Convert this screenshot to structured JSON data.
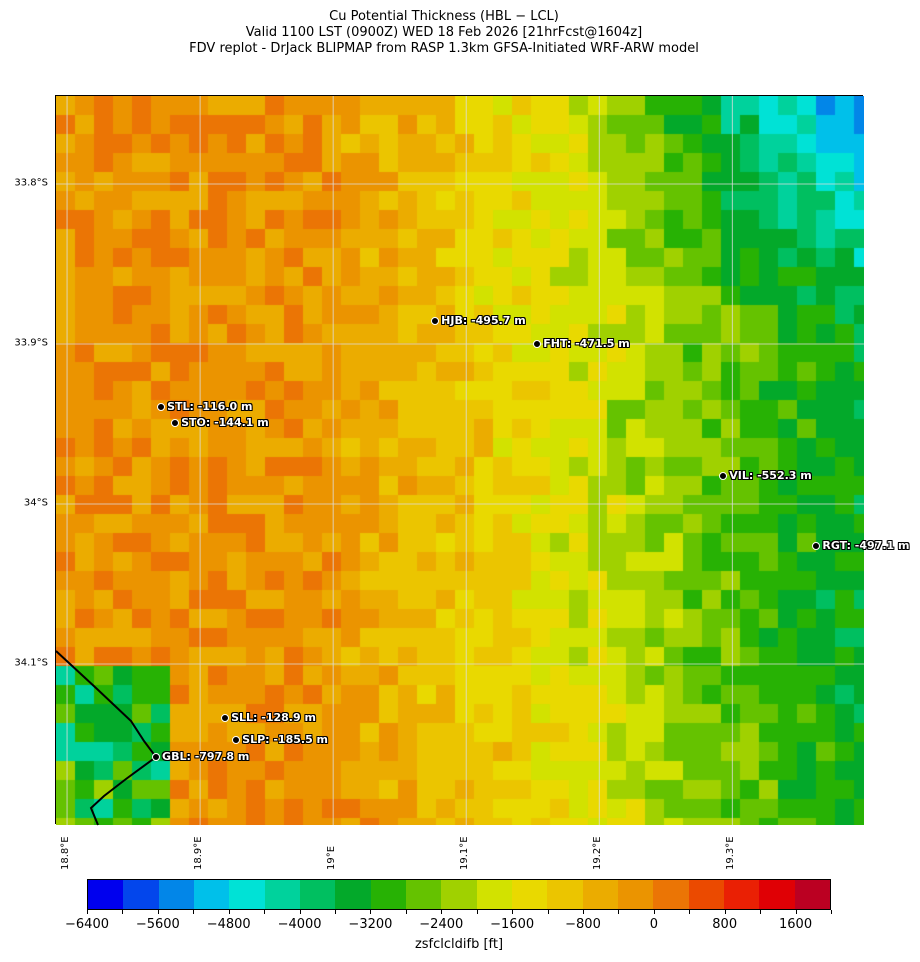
{
  "title": {
    "line1": "Cu Potential Thickness (HBL − LCL)",
    "line2": "Valid 1100 LST (0900Z) WED 18 Feb 2026 [21hrFcst@1604z]",
    "line3": "FDV replot - DrJack BLIPMAP from RASP 1.3km GFSA-Initiated WRF-ARW model"
  },
  "map": {
    "lon_range": [
      18.7917,
      19.399
    ],
    "lat_range": [
      33.745,
      34.2006
    ],
    "lat_ticks": [
      {
        "value": 33.8,
        "label": "33.8°S"
      },
      {
        "value": 33.9,
        "label": "33.9°S"
      },
      {
        "value": 34.0,
        "label": "34°S"
      },
      {
        "value": 34.1,
        "label": "34.1°S"
      }
    ],
    "lon_ticks": [
      {
        "value": 18.8,
        "label": "18.8°E"
      },
      {
        "value": 18.9,
        "label": "18.9°E"
      },
      {
        "value": 19.0,
        "label": "19°E"
      },
      {
        "value": 19.1,
        "label": "19.1°E"
      },
      {
        "value": 19.2,
        "label": "19.2°E"
      },
      {
        "value": 19.3,
        "label": "19.3°E"
      }
    ],
    "stations": [
      {
        "id": "HJB",
        "label": "HJB: -495.7 m",
        "lon": 19.0767,
        "lat": 33.8856
      },
      {
        "id": "FHT",
        "label": "FHT: -471.5 m",
        "lon": 19.1534,
        "lat": 33.9
      },
      {
        "id": "STL",
        "label": "STL: -116.0 m",
        "lon": 18.8707,
        "lat": 33.9394
      },
      {
        "id": "STO",
        "label": "STO: -144.1 m",
        "lon": 18.8812,
        "lat": 33.9494
      },
      {
        "id": "VIL",
        "label": "VIL: -552.3 m",
        "lon": 19.2932,
        "lat": 33.9825
      },
      {
        "id": "RGT",
        "label": "RGT: -497.1 m",
        "lon": 19.3632,
        "lat": 34.0263
      },
      {
        "id": "SLL",
        "label": "SLL: -128.9 m",
        "lon": 18.9188,
        "lat": 34.1338
      },
      {
        "id": "SLP",
        "label": "SLP: -185.5 m",
        "lon": 18.9271,
        "lat": 34.1475
      },
      {
        "id": "GBL",
        "label": "GBL: -797.8 m",
        "lon": 18.8669,
        "lat": 34.1581
      }
    ]
  },
  "colorbar": {
    "label": "zsfclcldifb [ft]",
    "min": -6400,
    "max": 2000,
    "step": 400,
    "tick_labels": [
      "−6400",
      "−5600",
      "−4800",
      "−4000",
      "−3200",
      "−2400",
      "−1600",
      "−800",
      "0",
      "800",
      "1600"
    ],
    "colors": [
      "#0000ee",
      "#0346ec",
      "#0286e8",
      "#00c0ea",
      "#00e2d6",
      "#00d29c",
      "#00bf60",
      "#03a92a",
      "#27b204",
      "#65c200",
      "#a0d100",
      "#d2e200",
      "#e9d900",
      "#ebc500",
      "#ebac00",
      "#eb9400",
      "#eb7505",
      "#eb4a00",
      "#ea2004",
      "#e00005",
      "#bb0022"
    ]
  }
}
